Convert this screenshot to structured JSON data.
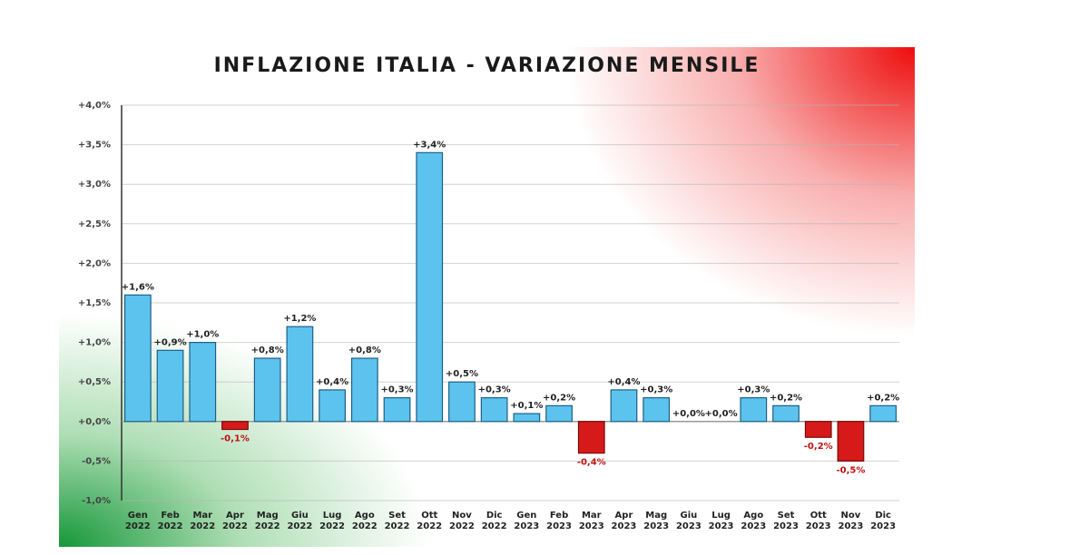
{
  "chart_data": {
    "type": "bar",
    "title": "INFLAZIONE ITALIA - VARIAZIONE MENSILE",
    "categories": [
      "Gen 2022",
      "Feb 2022",
      "Mar 2022",
      "Apr 2022",
      "Mag 2022",
      "Giu 2022",
      "Lug 2022",
      "Ago 2022",
      "Set 2022",
      "Ott 2022",
      "Nov 2022",
      "Dic 2022",
      "Gen 2023",
      "Feb 2023",
      "Mar 2023",
      "Apr 2023",
      "Mag 2023",
      "Giu 2023",
      "Lug 2023",
      "Ago 2023",
      "Set 2023",
      "Ott 2023",
      "Nov 2023",
      "Dic 2023"
    ],
    "values": [
      1.6,
      0.9,
      1.0,
      -0.1,
      0.8,
      1.2,
      0.4,
      0.8,
      0.3,
      3.4,
      0.5,
      0.3,
      0.1,
      0.2,
      -0.4,
      0.4,
      0.3,
      0.0,
      0.0,
      0.3,
      0.2,
      -0.2,
      -0.5,
      0.2
    ],
    "value_labels": [
      "+1,6%",
      "+0,9%",
      "+1,0%",
      "-0,1%",
      "+0,8%",
      "+1,2%",
      "+0,4%",
      "+0,8%",
      "+0,3%",
      "+3,4%",
      "+0,5%",
      "+0,3%",
      "+0,1%",
      "+0,2%",
      "-0,4%",
      "+0,4%",
      "+0,3%",
      "+0,0%",
      "+0,0%",
      "+0,3%",
      "+0,2%",
      "-0,2%",
      "-0,5%",
      "+0,2%"
    ],
    "color": "#5cc3ee",
    "negative_color": "#d61a1a",
    "ylim": [
      -1.0,
      4.0
    ],
    "yticks": [
      {
        "value": -1.0,
        "label": "-1,0%"
      },
      {
        "value": -0.5,
        "label": "-0,5%"
      },
      {
        "value": 0,
        "label": "+0,0%"
      },
      {
        "value": 0.5,
        "label": "+0,5%"
      },
      {
        "value": 1.0,
        "label": "+1,0%"
      },
      {
        "value": 1.5,
        "label": "+1,5%"
      },
      {
        "value": 2.0,
        "label": "+2,0%"
      },
      {
        "value": 2.5,
        "label": "+2,5%"
      },
      {
        "value": 3.0,
        "label": "+3,0%"
      },
      {
        "value": 3.5,
        "label": "+3,5%"
      },
      {
        "value": 4.0,
        "label": "+4,0%"
      }
    ],
    "grid": true
  }
}
